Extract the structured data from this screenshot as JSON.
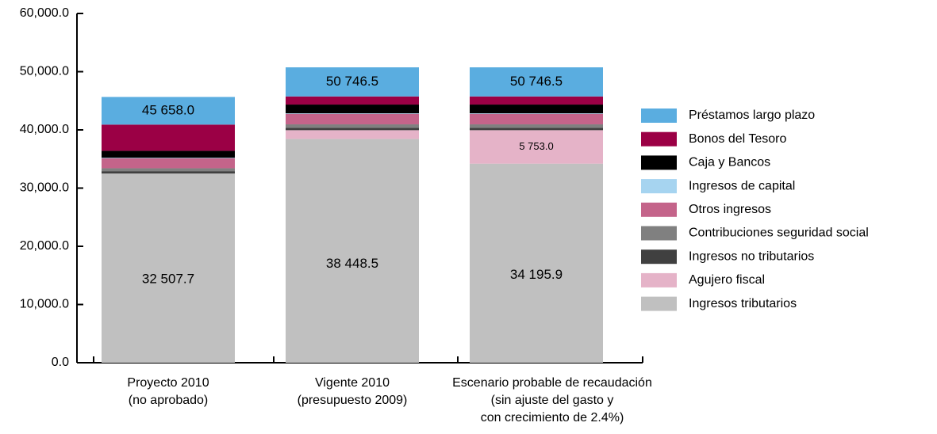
{
  "chart_data": {
    "type": "stacked_bar",
    "categories": [
      [
        "Proyecto 2010",
        "(no aprobado)"
      ],
      [
        "Vigente 2010",
        "(presupuesto 2009)"
      ],
      [
        "Escenario probable de recaudación",
        "(sin ajuste del gasto y",
        "con crecimiento de 2.4%)"
      ]
    ],
    "series": [
      {
        "name": "Préstamos largo plazo",
        "color": "#5aade0",
        "values": [
          4750.3,
          4997.6,
          4997.6
        ]
      },
      {
        "name": "Bonos del Tesoro",
        "color": "#9b0045",
        "values": [
          4500,
          1400,
          1400
        ]
      },
      {
        "name": "Caja y Bancos",
        "color": "#000000",
        "values": [
          1200,
          1500,
          1500
        ]
      },
      {
        "name": "Ingresos de capital",
        "color": "#a6d4f0",
        "values": [
          100,
          100,
          100
        ]
      },
      {
        "name": "Otros ingresos",
        "color": "#c4648a",
        "values": [
          1700,
          1800,
          1800
        ]
      },
      {
        "name": "Contribuciones seguridad social",
        "color": "#808080",
        "values": [
          500,
          600,
          600
        ]
      },
      {
        "name": "Ingresos no tributarios",
        "color": "#404040",
        "values": [
          400,
          400,
          400
        ]
      },
      {
        "name": "Agujero fiscal",
        "color": "#e5b3c8",
        "values": [
          0,
          1500.4,
          5753.0
        ],
        "value_labels": [
          null,
          "1 500.4",
          "5 753.0"
        ]
      },
      {
        "name": "Ingresos tributarios",
        "color": "#c0c0c0",
        "values": [
          32507.7,
          38448.5,
          34195.9
        ],
        "value_labels": [
          "32 507.7",
          "38 448.5",
          "34 195.9"
        ]
      }
    ],
    "totals": [
      45658.0,
      50746.5,
      50746.5
    ],
    "total_labels": [
      "45 658.0",
      "50 746.5",
      "50 746.5"
    ],
    "ylim": [
      0,
      60000
    ],
    "yticks": [
      {
        "value": 0,
        "label": "0.0"
      },
      {
        "value": 10000,
        "label": "10,000.0"
      },
      {
        "value": 20000,
        "label": "20,000.0"
      },
      {
        "value": 30000,
        "label": "30,000.0"
      },
      {
        "value": 40000,
        "label": "40,000.0"
      },
      {
        "value": 50000,
        "label": "50,000.0"
      },
      {
        "value": 60000,
        "label": "60,000.0"
      }
    ],
    "legend": "right"
  }
}
